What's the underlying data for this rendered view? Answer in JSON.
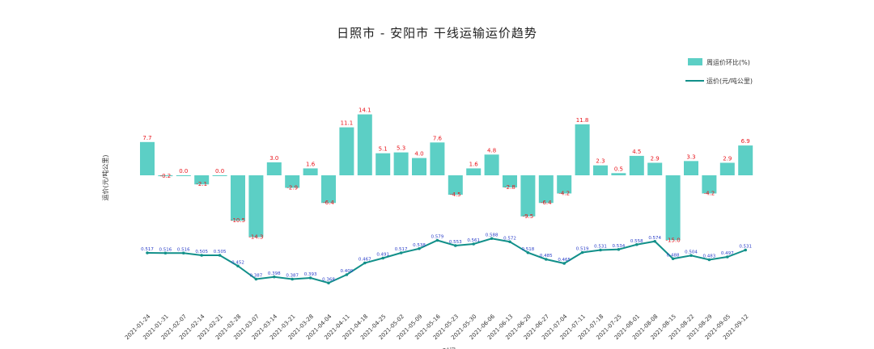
{
  "chart_data": {
    "type": "bar+line",
    "title": "日照市 - 安阳市 干线运输运价趋势",
    "ylabel": "运价(元/吨公里)",
    "xlabel": "时间",
    "legend": {
      "placement": "top-right"
    },
    "grid": false,
    "colors": {
      "bar": "#5ccfc5",
      "line": "#12908a",
      "bar_label": "#e8141b",
      "line_label": "#2b3fc9"
    },
    "categories": [
      "2021-01-24",
      "2021-01-31",
      "2021-02-07",
      "2021-02-14",
      "2021-02-21",
      "2021-02-28",
      "2021-03-07",
      "2021-03-14",
      "2021-03-21",
      "2021-03-28",
      "2021-04-04",
      "2021-04-11",
      "2021-04-18",
      "2021-04-25",
      "2021-05-02",
      "2021-05-09",
      "2021-05-16",
      "2021-05-23",
      "2021-05-30",
      "2021-06-06",
      "2021-06-13",
      "2021-06-20",
      "2021-06-27",
      "2021-07-04",
      "2021-07-11",
      "2021-07-18",
      "2021-07-25",
      "2021-08-01",
      "2021-08-08",
      "2021-08-15",
      "2021-08-22",
      "2021-08-29",
      "2021-09-05",
      "2021-09-12"
    ],
    "series": [
      {
        "name": "周运价环比(%)",
        "type": "bar",
        "values": [
          7.7,
          -0.2,
          0.0,
          -2.1,
          0.0,
          -10.5,
          -14.3,
          3.0,
          -2.9,
          1.6,
          -6.4,
          11.1,
          14.1,
          5.1,
          5.3,
          4.0,
          7.6,
          -4.5,
          1.6,
          4.8,
          -2.8,
          -9.5,
          -6.4,
          -4.2,
          11.8,
          2.3,
          0.5,
          4.5,
          2.9,
          -15.0,
          3.3,
          -4.2,
          2.9,
          6.9
        ],
        "labels": [
          "7.7",
          "-0.2",
          "0.0",
          "-2.1",
          "0.0",
          "-10.5",
          "-14.3",
          "3.0",
          "-2.9",
          "1.6",
          "-6.4",
          "11.1",
          "14.1",
          "5.1",
          "5.3",
          "4.0",
          "7.6",
          "-4.5",
          "1.6",
          "4.8",
          "-2.8",
          "-9.5",
          "-6.4",
          "-4.2",
          "11.8",
          "2.3",
          "0.5",
          "4.5",
          "2.9",
          "-15.0",
          "3.3",
          "-4.2",
          "2.9",
          "6.9"
        ]
      },
      {
        "name": "运价(元/吨公里)",
        "type": "line",
        "values": [
          0.517,
          0.516,
          0.516,
          0.505,
          0.505,
          0.452,
          0.387,
          0.398,
          0.387,
          0.393,
          0.368,
          0.409,
          0.467,
          0.491,
          0.517,
          0.538,
          0.579,
          0.553,
          0.561,
          0.588,
          0.572,
          0.518,
          0.485,
          0.465,
          0.519,
          0.531,
          0.534,
          0.558,
          0.574,
          0.488,
          0.504,
          0.483,
          0.497,
          0.531
        ],
        "labels": [
          "0.517",
          "0.516",
          "0.516",
          "0.505",
          "0.505",
          "0.452",
          "0.387",
          "0.398",
          "0.387",
          "0.393",
          "0.368",
          "0.409",
          "0.467",
          "0.491",
          "0.517",
          "0.538",
          "0.579",
          "0.553",
          "0.561",
          "0.588",
          "0.572",
          "0.518",
          "0.485",
          "0.465",
          "0.519",
          "0.531",
          "0.534",
          "0.558",
          "0.574",
          "0.488",
          "0.504",
          "0.483",
          "0.497",
          "0.531"
        ]
      }
    ]
  }
}
